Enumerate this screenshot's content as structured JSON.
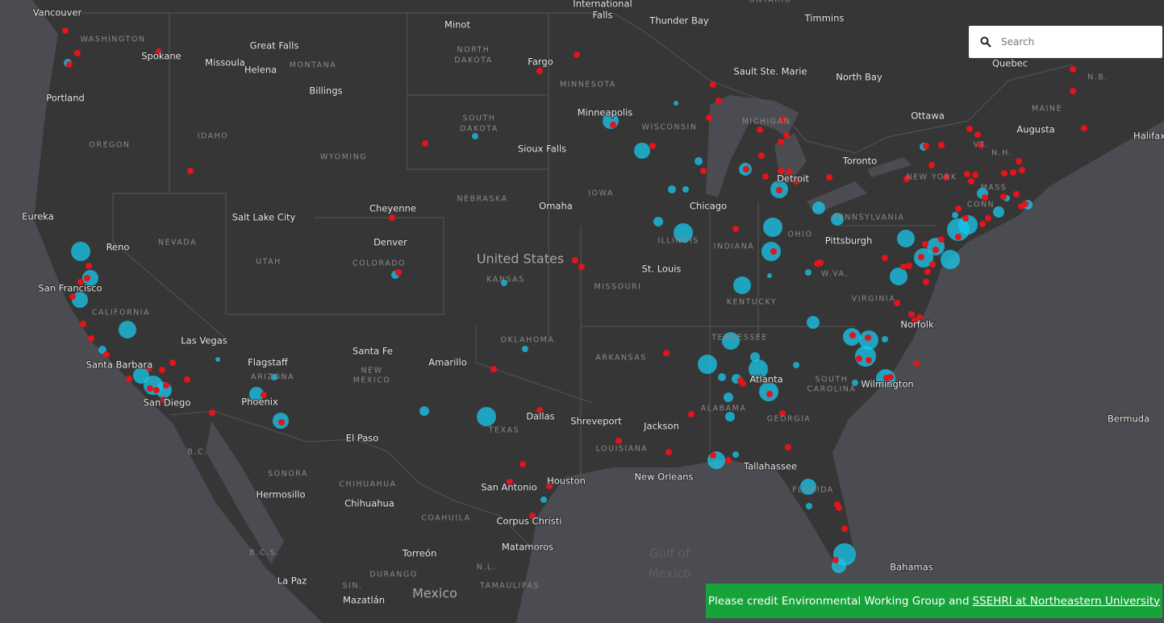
{
  "search": {
    "placeholder": "Search"
  },
  "credit": {
    "text": "Please credit Environmental Working Group and",
    "link": "SSEHRI at Northeastern University"
  },
  "map": {
    "countries": [
      "United States",
      "Mexico"
    ],
    "water": [
      "Gulf of",
      "Mexico"
    ],
    "cities": [
      "Vancouver",
      "Spokane",
      "Great Falls",
      "Missoula",
      "Helena",
      "Billings",
      "Portland",
      "Minot",
      "Fargo",
      "International",
      "Falls",
      "Thunder Bay",
      "Timmins",
      "Quebec",
      "Sault Ste. Marie",
      "North Bay",
      "Ottawa",
      "Augusta",
      "Halifax",
      "Minneapolis",
      "Sioux Falls",
      "Toronto",
      "Eureka",
      "Reno",
      "Salt Lake City",
      "Cheyenne",
      "Denver",
      "Omaha",
      "Chicago",
      "Pittsburgh",
      "San Francisco",
      "St. Louis",
      "Las Vegas",
      "Flagstaff",
      "Santa Fe",
      "Amarillo",
      "Norfolk",
      "Santa Barbara",
      "Atlanta",
      "Phoenix",
      "San Diego",
      "Dallas",
      "Shreveport",
      "Wilmington",
      "Jackson",
      "El Paso",
      "Hermosillo",
      "San Antonio",
      "Houston",
      "New Orleans",
      "Tallahassee",
      "Chihuahua",
      "Corpus Christi",
      "Torreón",
      "Matamoros",
      "La Paz",
      "Mazatlán",
      "Bermuda",
      "Bahamas",
      "Detroit"
    ],
    "regions": [
      "WASHINGTON",
      "MONTANA",
      "NORTH",
      "DAKOTA",
      "MINNESOTA",
      "WISCONSIN",
      "MICHIGAN",
      "OREGON",
      "IDAHO",
      "WYOMING",
      "SOUTH",
      "DAKOTA",
      "NEW YORK",
      "IOWA",
      "NEBRASKA",
      "NEVADA",
      "PENNSYLVANIA",
      "UTAH",
      "COLORADO",
      "KANSAS",
      "ILLINOIS",
      "INDIANA",
      "OHIO",
      "MISSOURI",
      "W.VA.",
      "KENTUCKY",
      "VIRGINIA",
      "CALIFORNIA",
      "TENNESSEE",
      "OKLAHOMA",
      "ARKANSAS",
      "ARIZONA",
      "NEW",
      "MEXICO",
      "SOUTH",
      "CAROLINA",
      "ALABAMA",
      "GEORGIA",
      "TEXAS",
      "LOUISIANA",
      "FLORIDA",
      "SONORA",
      "CHIHUAHUA",
      "COAHUILA",
      "DURANGO",
      "N.L.",
      "SIN.",
      "TAMAULIPAS",
      "B.C.",
      "B.C.S.",
      "MAINE",
      "VT.",
      "N.H.",
      "MASS",
      "CONN",
      "N.B.",
      "ONTARIO"
    ]
  }
}
